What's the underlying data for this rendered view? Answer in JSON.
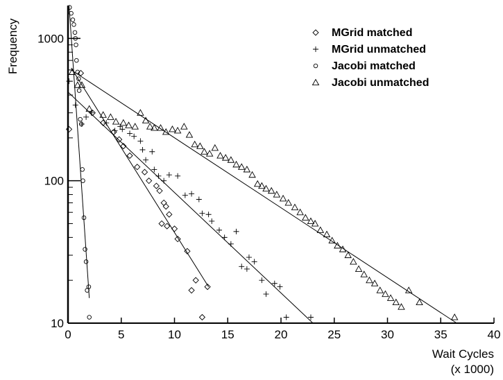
{
  "chart_data": {
    "type": "scatter",
    "title": "",
    "ylabel": "Frequency",
    "xlabel_line1": "Wait Cycles",
    "xlabel_line2": "(x 1000)",
    "xlim": [
      0,
      40
    ],
    "ylim": [
      10,
      1700
    ],
    "yscale": "log",
    "x_ticks": [
      0,
      5,
      10,
      15,
      20,
      25,
      30,
      35,
      40
    ],
    "x_tick_labels": [
      "0",
      "5",
      "10",
      "15",
      "20",
      "25",
      "30",
      "35",
      "40"
    ],
    "y_ticks": [
      10,
      100,
      1000
    ],
    "y_tick_labels": [
      "10",
      "100",
      "1000"
    ],
    "grid": false,
    "legend_position": "top-right",
    "series": [
      {
        "name": "MGrid matched",
        "marker": "diamond",
        "points": [
          [
            0.1,
            230
          ],
          [
            1.2,
            570
          ],
          [
            2.3,
            300
          ],
          [
            3.3,
            255
          ],
          [
            4.3,
            220
          ],
          [
            4.8,
            195
          ],
          [
            5.2,
            175
          ],
          [
            5.8,
            150
          ],
          [
            6.5,
            125
          ],
          [
            7.2,
            115
          ],
          [
            7.6,
            100
          ],
          [
            8.3,
            92
          ],
          [
            8.6,
            85
          ],
          [
            9.0,
            70
          ],
          [
            9.2,
            66
          ],
          [
            9.5,
            58
          ],
          [
            8.8,
            50
          ],
          [
            9.3,
            48
          ],
          [
            10.0,
            46
          ],
          [
            10.3,
            39
          ],
          [
            11.2,
            32
          ],
          [
            11.6,
            17
          ],
          [
            12.0,
            20
          ],
          [
            12.6,
            11
          ],
          [
            13.1,
            18
          ]
        ],
        "fit": [
          [
            0.3,
            620
          ],
          [
            13.2,
            18
          ]
        ]
      },
      {
        "name": "MGrid unmatched",
        "marker": "plus",
        "points": [
          [
            0.1,
            500
          ],
          [
            0.7,
            340
          ],
          [
            1.3,
            250
          ],
          [
            1.7,
            280
          ],
          [
            2.2,
            300
          ],
          [
            3.6,
            255
          ],
          [
            4.4,
            225
          ],
          [
            4.9,
            240
          ],
          [
            5.1,
            230
          ],
          [
            5.8,
            215
          ],
          [
            6.2,
            205
          ],
          [
            6.8,
            190
          ],
          [
            7.0,
            165
          ],
          [
            7.3,
            140
          ],
          [
            7.9,
            160
          ],
          [
            8.1,
            120
          ],
          [
            8.5,
            108
          ],
          [
            9.0,
            100
          ],
          [
            9.5,
            110
          ],
          [
            10.3,
            108
          ],
          [
            11.0,
            79
          ],
          [
            11.6,
            81
          ],
          [
            12.3,
            74
          ],
          [
            12.6,
            59
          ],
          [
            13.2,
            58
          ],
          [
            13.5,
            52
          ],
          [
            14.2,
            45
          ],
          [
            14.7,
            40
          ],
          [
            15.3,
            36
          ],
          [
            15.8,
            44
          ],
          [
            16.3,
            25
          ],
          [
            16.8,
            24
          ],
          [
            17.0,
            29
          ],
          [
            17.5,
            27
          ],
          [
            18.2,
            20
          ],
          [
            18.6,
            16
          ],
          [
            19.4,
            19
          ],
          [
            19.9,
            18
          ],
          [
            20.5,
            11
          ],
          [
            22.8,
            11
          ]
        ],
        "fit": [
          [
            0.0,
            420
          ],
          [
            23.0,
            10
          ]
        ]
      },
      {
        "name": "Jacobi matched",
        "marker": "circle",
        "points": [
          [
            0.15,
            1650
          ],
          [
            0.3,
            1500
          ],
          [
            0.45,
            1350
          ],
          [
            0.55,
            1250
          ],
          [
            0.65,
            1100
          ],
          [
            0.7,
            1000
          ],
          [
            0.75,
            900
          ],
          [
            0.8,
            700
          ],
          [
            0.9,
            580
          ],
          [
            1.0,
            520
          ],
          [
            1.05,
            430
          ],
          [
            1.15,
            270
          ],
          [
            1.25,
            250
          ],
          [
            1.35,
            120
          ],
          [
            1.4,
            100
          ],
          [
            1.5,
            55
          ],
          [
            1.6,
            33
          ],
          [
            1.7,
            27
          ],
          [
            1.8,
            17
          ],
          [
            1.95,
            18
          ],
          [
            2.0,
            11
          ]
        ],
        "fit": [
          [
            0.1,
            1700
          ],
          [
            2.0,
            15
          ]
        ]
      },
      {
        "name": "Jacobi unmatched",
        "marker": "triangle",
        "points": [
          [
            0.4,
            580
          ],
          [
            0.9,
            470
          ],
          [
            1.3,
            470
          ],
          [
            2.0,
            320
          ],
          [
            3.3,
            290
          ],
          [
            4.0,
            280
          ],
          [
            4.5,
            260
          ],
          [
            5.2,
            255
          ],
          [
            5.7,
            245
          ],
          [
            6.3,
            240
          ],
          [
            6.8,
            300
          ],
          [
            7.3,
            265
          ],
          [
            7.7,
            240
          ],
          [
            8.1,
            235
          ],
          [
            8.7,
            235
          ],
          [
            9.2,
            220
          ],
          [
            9.8,
            230
          ],
          [
            10.3,
            225
          ],
          [
            10.9,
            240
          ],
          [
            11.4,
            210
          ],
          [
            11.9,
            180
          ],
          [
            12.4,
            175
          ],
          [
            12.8,
            160
          ],
          [
            13.3,
            155
          ],
          [
            13.8,
            170
          ],
          [
            14.3,
            150
          ],
          [
            14.8,
            145
          ],
          [
            15.3,
            140
          ],
          [
            15.8,
            130
          ],
          [
            16.3,
            125
          ],
          [
            16.8,
            120
          ],
          [
            17.3,
            110
          ],
          [
            17.8,
            95
          ],
          [
            18.2,
            92
          ],
          [
            18.6,
            88
          ],
          [
            19.1,
            85
          ],
          [
            19.6,
            80
          ],
          [
            20.2,
            75
          ],
          [
            20.7,
            70
          ],
          [
            21.3,
            65
          ],
          [
            21.8,
            60
          ],
          [
            22.3,
            55
          ],
          [
            22.8,
            52
          ],
          [
            23.2,
            50
          ],
          [
            23.7,
            45
          ],
          [
            24.3,
            42
          ],
          [
            24.8,
            38
          ],
          [
            25.3,
            35
          ],
          [
            25.8,
            33
          ],
          [
            26.3,
            30
          ],
          [
            26.8,
            27
          ],
          [
            27.3,
            24
          ],
          [
            27.8,
            22
          ],
          [
            28.3,
            20
          ],
          [
            28.8,
            19
          ],
          [
            29.3,
            17
          ],
          [
            29.8,
            16
          ],
          [
            30.3,
            15
          ],
          [
            30.8,
            14
          ],
          [
            31.3,
            13
          ],
          [
            32.0,
            17
          ],
          [
            33.0,
            14
          ],
          [
            36.3,
            11
          ]
        ],
        "fit": [
          [
            0.3,
            600
          ],
          [
            36.5,
            10
          ]
        ]
      }
    ]
  }
}
